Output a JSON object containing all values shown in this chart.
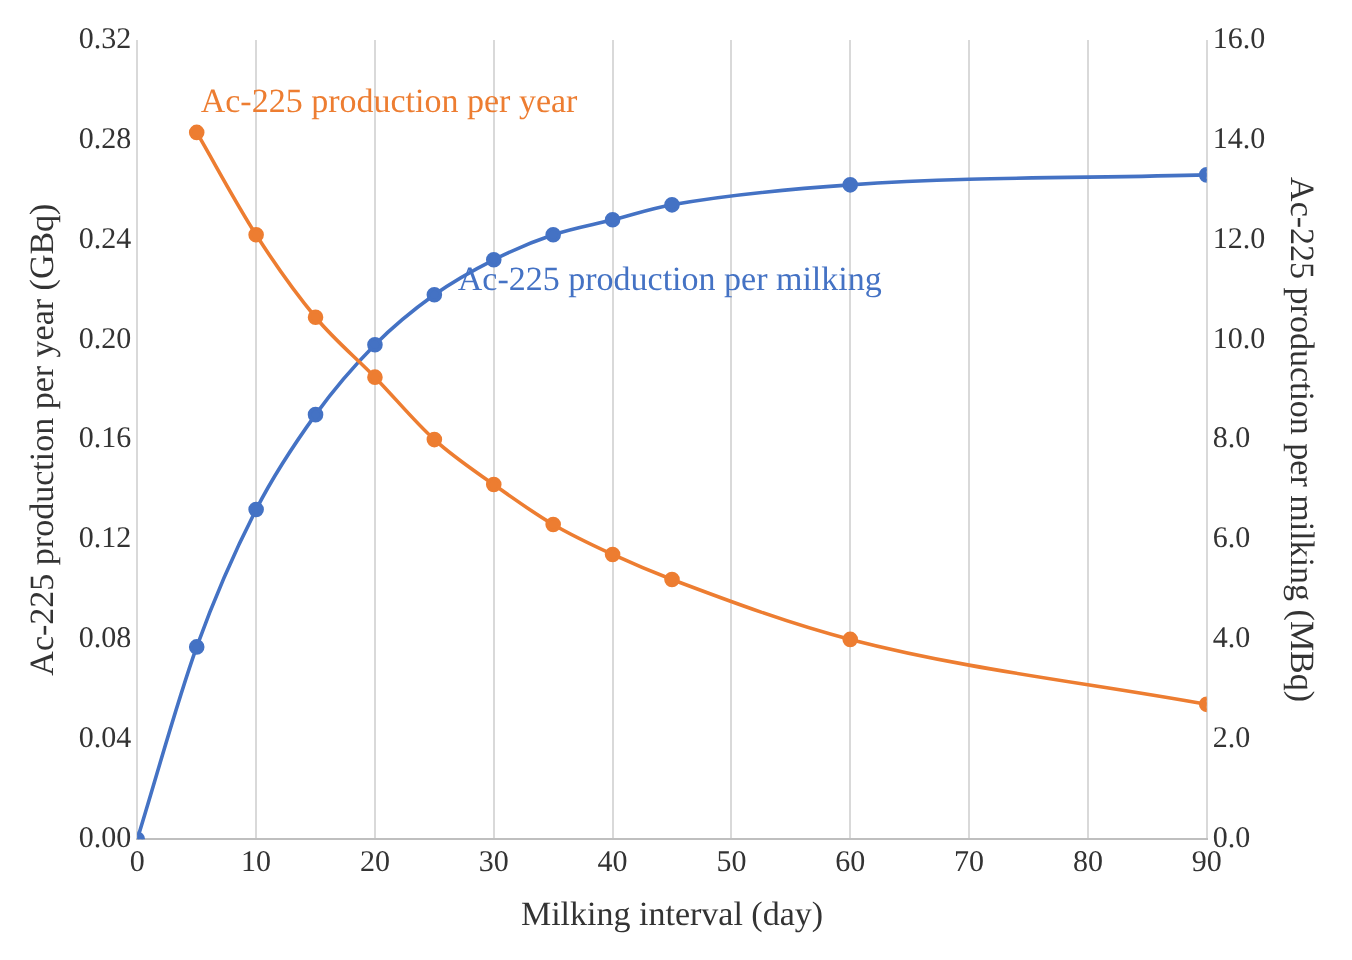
{
  "chart_data": {
    "type": "line",
    "xlabel": "Milking interval (day)",
    "ylabel": "Ac-225 production per year (GBq)",
    "y2label": "Ac-225 production per milking (MBq)",
    "series": [
      {
        "name": "Ac-225 production per year",
        "color": "#ed7d31",
        "x": [
          5,
          10,
          15,
          20,
          25,
          30,
          35,
          40,
          45,
          60,
          90
        ],
        "values": [
          0.283,
          0.242,
          0.209,
          0.185,
          0.16,
          0.142,
          0.126,
          0.114,
          0.104,
          0.08,
          0.054
        ]
      },
      {
        "name": "Ac-225 production per milking",
        "color": "#4472c4",
        "axis": "y2",
        "x": [
          0,
          5,
          10,
          15,
          20,
          25,
          30,
          35,
          40,
          45,
          60,
          90
        ],
        "values": [
          0,
          3.85,
          6.6,
          8.5,
          9.9,
          10.9,
          11.6,
          12.1,
          12.4,
          12.7,
          13.1,
          13.3
        ]
      }
    ],
    "xlim": [
      0,
      90
    ],
    "xticks": [
      0,
      10,
      20,
      30,
      40,
      50,
      60,
      70,
      80,
      90
    ],
    "ylim": [
      0,
      0.32
    ],
    "yticks": [
      {
        "value": 0,
        "label": "0.00"
      },
      {
        "value": 0.04,
        "label": "0.04"
      },
      {
        "value": 0.08,
        "label": "0.08"
      },
      {
        "value": 0.12,
        "label": "0.12"
      },
      {
        "value": 0.16,
        "label": "0.16"
      },
      {
        "value": 0.2,
        "label": "0.20"
      },
      {
        "value": 0.24,
        "label": "0.24"
      },
      {
        "value": 0.28,
        "label": "0.28"
      },
      {
        "value": 0.32,
        "label": "0.32"
      }
    ],
    "y2lim": [
      0,
      16
    ],
    "y2ticks": [
      {
        "value": 0,
        "label": "0.0"
      },
      {
        "value": 2,
        "label": "2.0"
      },
      {
        "value": 4,
        "label": "4.0"
      },
      {
        "value": 6,
        "label": "6.0"
      },
      {
        "value": 8,
        "label": "8.0"
      },
      {
        "value": 10,
        "label": "10.0"
      },
      {
        "value": 12,
        "label": "12.0"
      },
      {
        "value": 14,
        "label": "14.0"
      },
      {
        "value": 16,
        "label": "16.0"
      }
    ],
    "grid": "x",
    "legend": false,
    "marker": "circle",
    "line_style": "solid"
  }
}
